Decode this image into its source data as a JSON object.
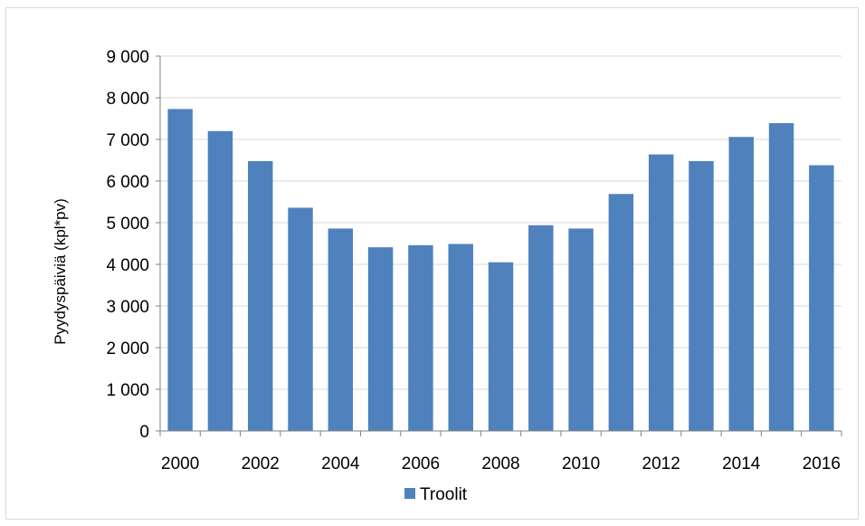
{
  "chart_data": {
    "type": "bar",
    "title": "",
    "xlabel": "",
    "ylabel": "Pyydyspäiviä (kpl*pv)",
    "ylim": [
      0,
      9000
    ],
    "y_ticks": [
      "0",
      "1 000",
      "2 000",
      "3 000",
      "4 000",
      "5 000",
      "6 000",
      "7 000",
      "8 000",
      "9 000"
    ],
    "y_tick_values": [
      0,
      1000,
      2000,
      3000,
      4000,
      5000,
      6000,
      7000,
      8000,
      9000
    ],
    "x_tick_labels": [
      "2000",
      "2002",
      "2004",
      "2006",
      "2008",
      "2010",
      "2012",
      "2014",
      "2016"
    ],
    "categories": [
      "2000",
      "2001",
      "2002",
      "2003",
      "2004",
      "2005",
      "2006",
      "2007",
      "2008",
      "2009",
      "2010",
      "2011",
      "2012",
      "2013",
      "2014",
      "2015",
      "2016"
    ],
    "series": [
      {
        "name": "Troolit",
        "color": "#4f81bd",
        "values": [
          7730,
          7200,
          6480,
          5360,
          4860,
          4410,
          4460,
          4490,
          4050,
          4940,
          4860,
          5690,
          6640,
          6480,
          7060,
          7390,
          6380
        ]
      }
    ],
    "grid": true,
    "legend_position": "bottom"
  }
}
